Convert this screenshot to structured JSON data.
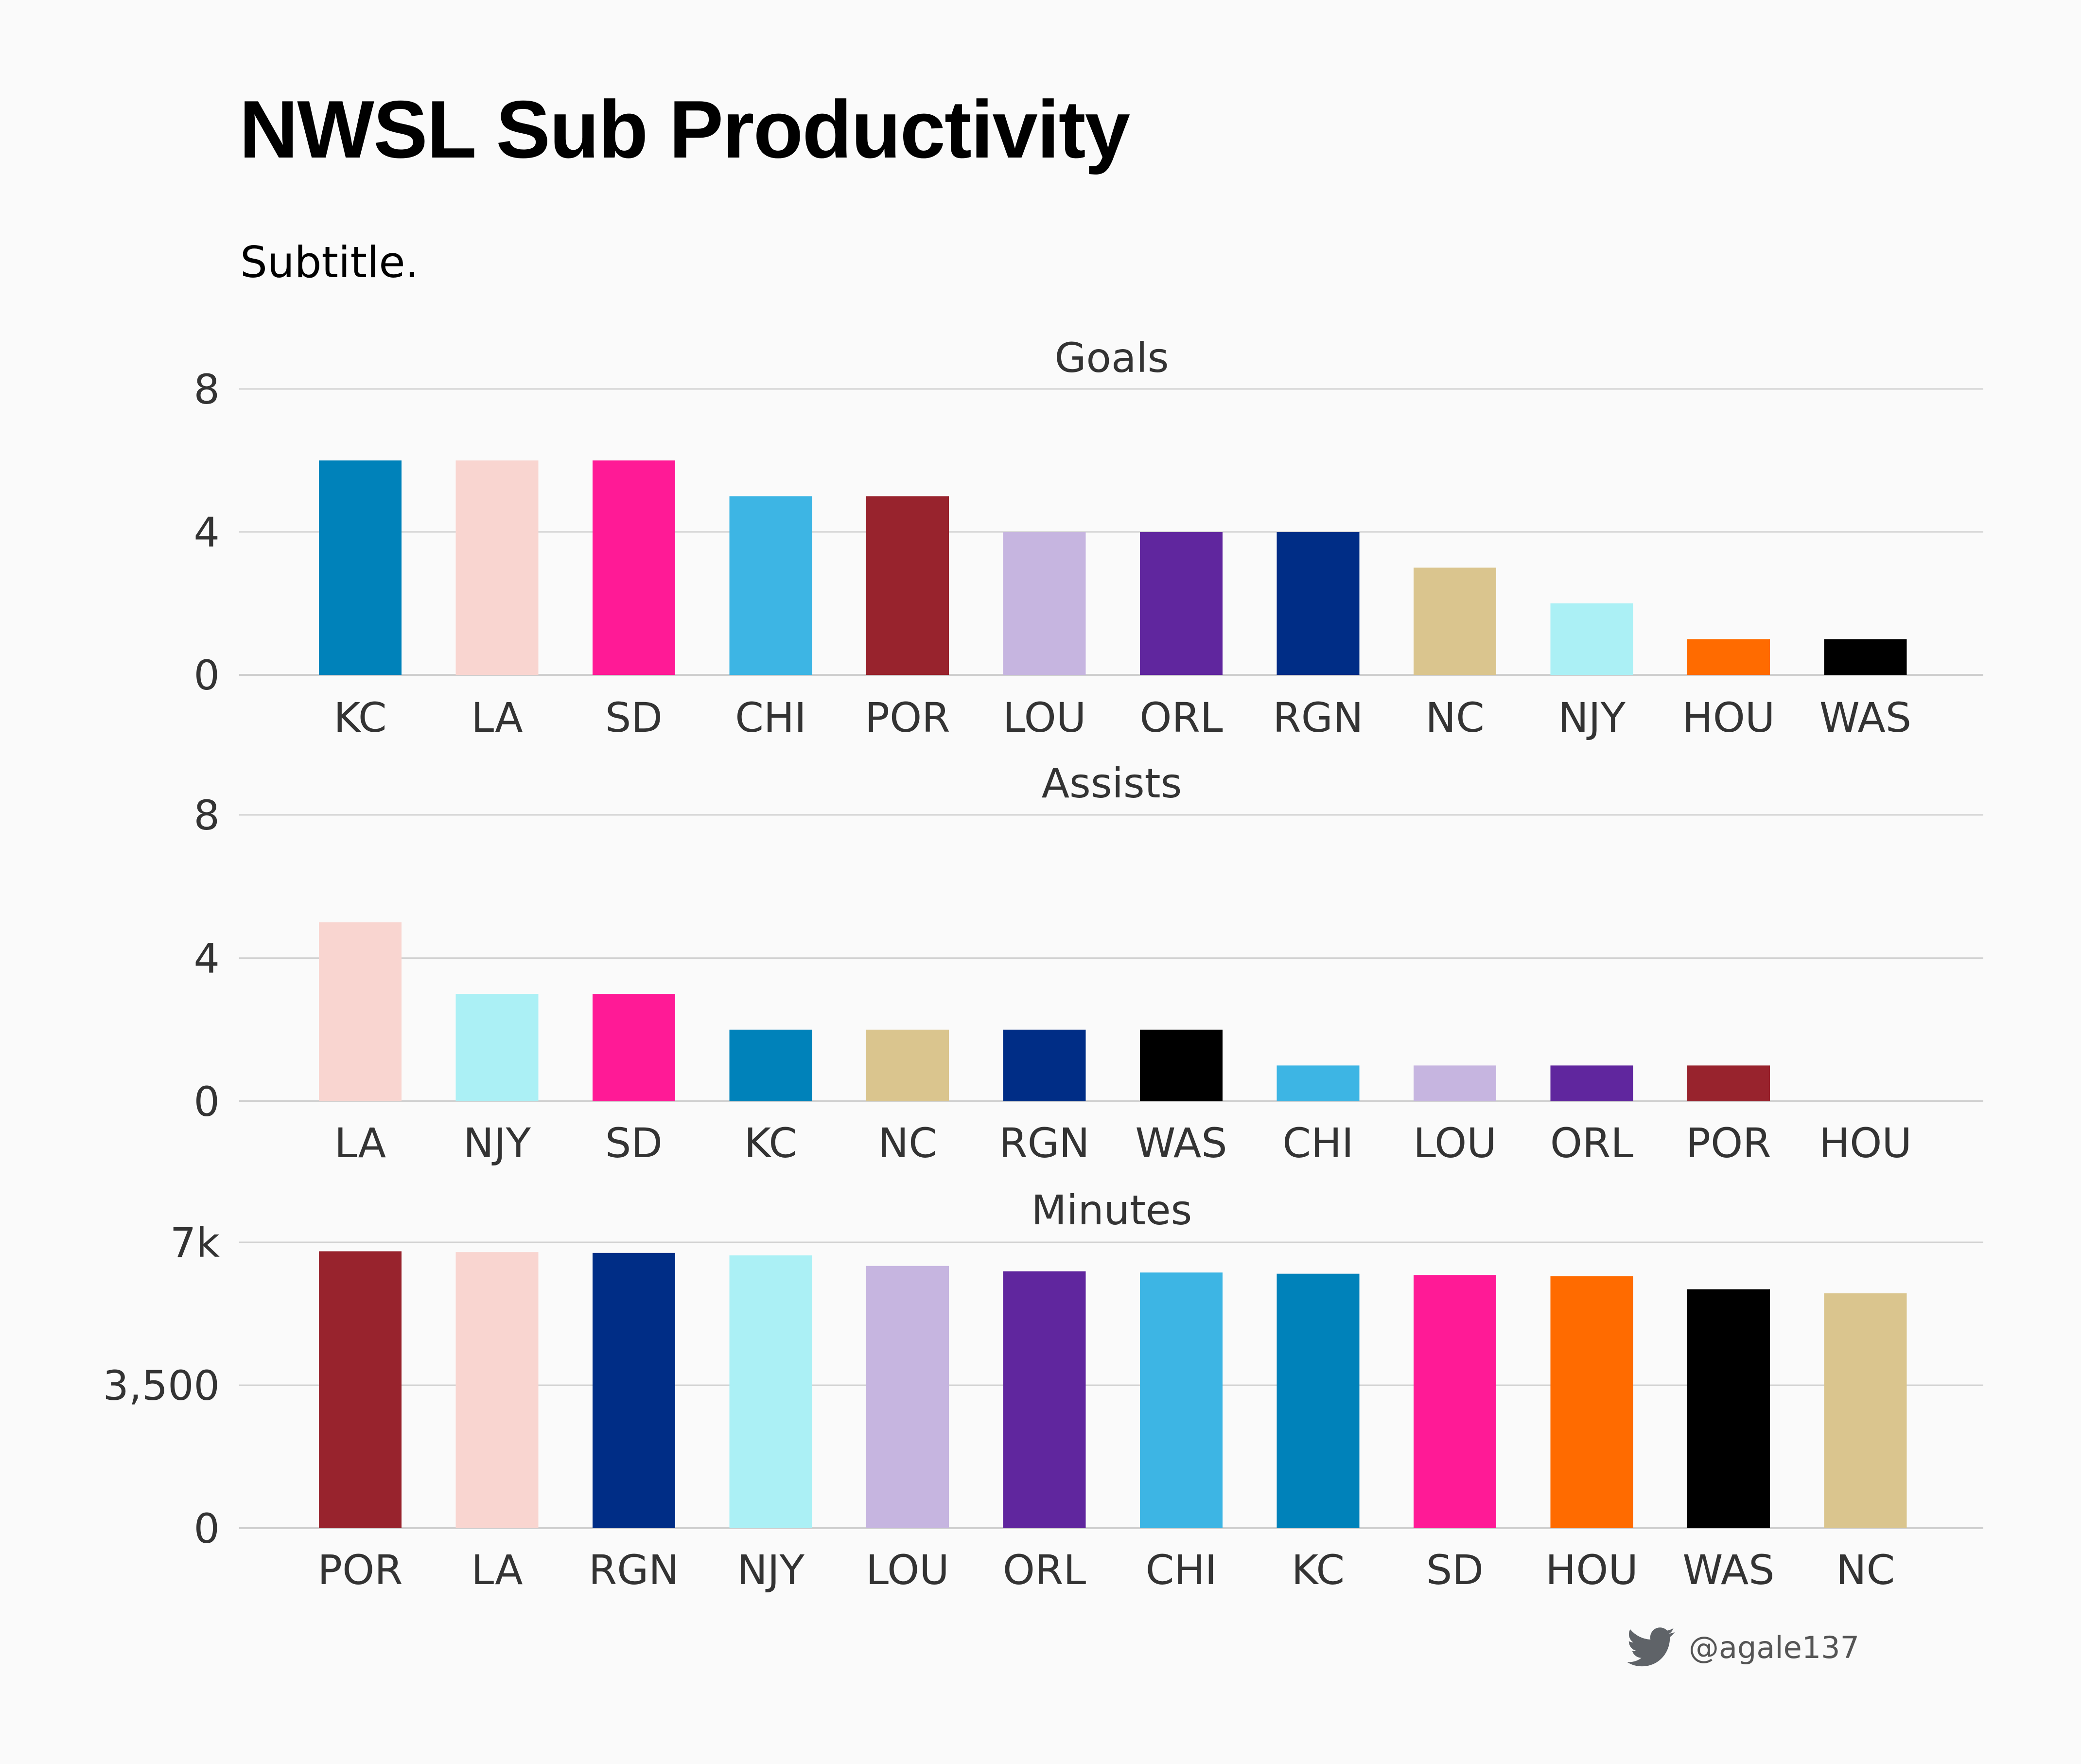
{
  "header": {
    "title": "NWSL Sub Productivity",
    "subtitle": "Subtitle."
  },
  "credit": {
    "handle": "@agale137",
    "icon": "twitter-bird-icon",
    "icon_color": "#5f6368"
  },
  "chart_data": [
    {
      "type": "bar",
      "title": "Goals",
      "categories": [
        "KC",
        "LA",
        "SD",
        "CHI",
        "POR",
        "LOU",
        "ORL",
        "RGN",
        "NC",
        "NJY",
        "HOU",
        "WAS"
      ],
      "values": [
        6,
        6,
        6,
        5,
        5,
        4,
        4,
        4,
        3,
        2,
        1,
        1
      ],
      "colors": [
        "#0082ba",
        "#f9d5d0",
        "#ff1a96",
        "#3db5e4",
        "#98232d",
        "#c6b5e0",
        "#60269e",
        "#002d86",
        "#dac58e",
        "#abf0f5",
        "#ff6b00",
        "#000000"
      ],
      "ylim": [
        0,
        8
      ],
      "yticks": [
        0,
        4,
        8
      ],
      "ytick_labels": [
        "0",
        "4",
        "8"
      ],
      "grid": true
    },
    {
      "type": "bar",
      "title": "Assists",
      "categories": [
        "LA",
        "NJY",
        "SD",
        "KC",
        "NC",
        "RGN",
        "WAS",
        "CHI",
        "LOU",
        "ORL",
        "POR",
        "HOU"
      ],
      "values": [
        5,
        3,
        3,
        2,
        2,
        2,
        2,
        1,
        1,
        1,
        1,
        0
      ],
      "colors": [
        "#f9d5d0",
        "#abf0f5",
        "#ff1a96",
        "#0082ba",
        "#dac58e",
        "#002d86",
        "#000000",
        "#3db5e4",
        "#c6b5e0",
        "#60269e",
        "#98232d",
        "#ff6b00"
      ],
      "ylim": [
        0,
        8
      ],
      "yticks": [
        0,
        4,
        8
      ],
      "ytick_labels": [
        "0",
        "4",
        "8"
      ],
      "grid": true
    },
    {
      "type": "bar",
      "title": "Minutes",
      "categories": [
        "POR",
        "LA",
        "RGN",
        "NJY",
        "LOU",
        "ORL",
        "CHI",
        "KC",
        "SD",
        "HOU",
        "WAS",
        "NC"
      ],
      "values": [
        6780,
        6760,
        6740,
        6680,
        6420,
        6290,
        6260,
        6230,
        6200,
        6170,
        5850,
        5750
      ],
      "colors": [
        "#98232d",
        "#f9d5d0",
        "#002d86",
        "#abf0f5",
        "#c6b5e0",
        "#60269e",
        "#3db5e4",
        "#0082ba",
        "#ff1a96",
        "#ff6b00",
        "#000000",
        "#dac58e"
      ],
      "ylim": [
        0,
        7000
      ],
      "yticks": [
        0,
        3500,
        7000
      ],
      "ytick_labels": [
        "0",
        "3,500",
        "7k"
      ],
      "grid": true
    }
  ]
}
